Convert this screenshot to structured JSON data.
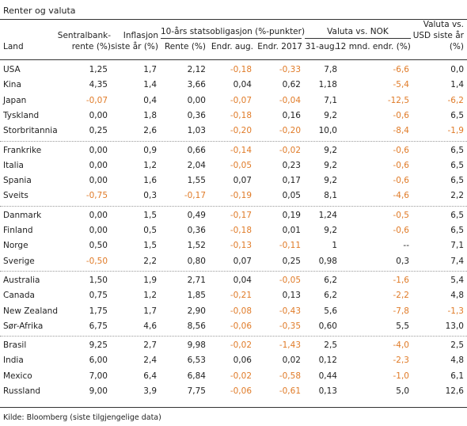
{
  "title": "Renter og valuta",
  "group_headers": {
    "bonds": "10-års statsobligasjon (%-punkter)",
    "currency": "Valuta vs. NOK"
  },
  "columns": {
    "land": "Land",
    "sentralbank": [
      "Sentralbank-",
      "rente (%)"
    ],
    "inflasjon": [
      "Inflasjon",
      "siste år (%)"
    ],
    "rente": "Rente (%)",
    "endr_aug": "Endr. aug.",
    "endr_2017": "Endr. 2017",
    "aug31": "31-aug.",
    "mnd12": "12 mnd. endr. (%)",
    "usd": [
      "Valuta vs.",
      "USD siste år",
      "(%)"
    ]
  },
  "rows": [
    [
      "USA",
      "1,25",
      "1,7",
      "2,12",
      "-0,18",
      "-0,33",
      "7,8",
      "-6,6",
      "0,0"
    ],
    [
      "Kina",
      "4,35",
      "1,4",
      "3,66",
      "0,04",
      "0,62",
      "1,18",
      "-5,4",
      "1,4"
    ],
    [
      "Japan",
      "-0,07",
      "0,4",
      "0,00",
      "-0,07",
      "-0,04",
      "7,1",
      "-12,5",
      "-6,2"
    ],
    [
      "Tyskland",
      "0,00",
      "1,8",
      "0,36",
      "-0,18",
      "0,16",
      "9,2",
      "-0,6",
      "6,5"
    ],
    [
      "Storbritannia",
      "0,25",
      "2,6",
      "1,03",
      "-0,20",
      "-0,20",
      "10,0",
      "-8,4",
      "-1,9"
    ],
    [
      "Frankrike",
      "0,00",
      "0,9",
      "0,66",
      "-0,14",
      "-0,02",
      "9,2",
      "-0,6",
      "6,5"
    ],
    [
      "Italia",
      "0,00",
      "1,2",
      "2,04",
      "-0,05",
      "0,23",
      "9,2",
      "-0,6",
      "6,5"
    ],
    [
      "Spania",
      "0,00",
      "1,6",
      "1,55",
      "0,07",
      "0,17",
      "9,2",
      "-0,6",
      "6,5"
    ],
    [
      "Sveits",
      "-0,75",
      "0,3",
      "-0,17",
      "-0,19",
      "0,05",
      "8,1",
      "-4,6",
      "2,2"
    ],
    [
      "Danmark",
      "0,00",
      "1,5",
      "0,49",
      "-0,17",
      "0,19",
      "1,24",
      "-0,5",
      "6,5"
    ],
    [
      "Finland",
      "0,00",
      "0,5",
      "0,36",
      "-0,18",
      "0,01",
      "9,2",
      "-0,6",
      "6,5"
    ],
    [
      "Norge",
      "0,50",
      "1,5",
      "1,52",
      "-0,13",
      "-0,11",
      "1",
      "--",
      "7,1"
    ],
    [
      "Sverige",
      "-0,50",
      "2,2",
      "0,80",
      "0,07",
      "0,25",
      "0,98",
      "0,3",
      "7,4"
    ],
    [
      "Australia",
      "1,50",
      "1,9",
      "2,71",
      "0,04",
      "-0,05",
      "6,2",
      "-1,6",
      "5,4"
    ],
    [
      "Canada",
      "0,75",
      "1,2",
      "1,85",
      "-0,21",
      "0,13",
      "6,2",
      "-2,2",
      "4,8"
    ],
    [
      "New Zealand",
      "1,75",
      "1,7",
      "2,90",
      "-0,08",
      "-0,43",
      "5,6",
      "-7,8",
      "-1,3"
    ],
    [
      "Sør-Afrika",
      "6,75",
      "4,6",
      "8,56",
      "-0,06",
      "-0,35",
      "0,60",
      "5,5",
      "13,0"
    ],
    [
      "Brasil",
      "9,25",
      "2,7",
      "9,98",
      "-0,02",
      "-1,43",
      "2,5",
      "-4,0",
      "2,5"
    ],
    [
      "India",
      "6,00",
      "2,4",
      "6,53",
      "0,06",
      "0,02",
      "0,12",
      "-2,3",
      "4,8"
    ],
    [
      "Mexico",
      "7,00",
      "6,4",
      "6,84",
      "-0,02",
      "-0,58",
      "0,44",
      "-1,0",
      "6,1"
    ],
    [
      "Russland",
      "9,00",
      "3,9",
      "7,75",
      "-0,06",
      "-0,61",
      "0,13",
      "5,0",
      "12,6"
    ]
  ],
  "colors": {
    "negative": "#e07b28",
    "text": "#222222"
  },
  "footnote": "Kilde: Bloomberg (siste tilgjengelige data)"
}
